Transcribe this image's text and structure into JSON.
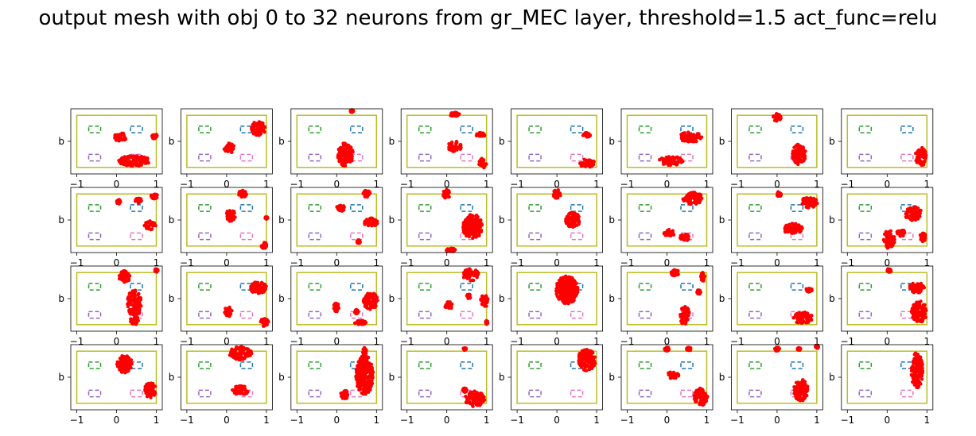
{
  "chart_data": {
    "type": "scatter",
    "title": "output mesh with obj 0 to 32 neurons from gr_MEC layer, threshold=1.5 act_func=relu",
    "grid": false,
    "rows": 4,
    "cols": 8,
    "xlim": [
      -1.15,
      1.15
    ],
    "ylim": [
      -0.75,
      0.75
    ],
    "xticks": [
      -1,
      0,
      1
    ],
    "xtick_labels": [
      "−1",
      "0",
      "1"
    ],
    "ylabel": "b",
    "point_color": "#ff0000",
    "overlays": {
      "arena": {
        "color": "#bcbd22",
        "x": [
          -1.0,
          1.0
        ],
        "y": [
          -0.6,
          0.6
        ]
      },
      "goals": [
        {
          "color": "#2ca02c",
          "x": [
            -0.7,
            -0.4
          ],
          "y": [
            0.2,
            0.35
          ]
        },
        {
          "color": "#1f77b4",
          "x": [
            0.35,
            0.65
          ],
          "y": [
            0.2,
            0.35
          ]
        },
        {
          "color": "#9467bd",
          "x": [
            -0.7,
            -0.4
          ],
          "y": [
            -0.45,
            -0.3
          ]
        },
        {
          "color": "#e377c2",
          "x": [
            0.35,
            0.65
          ],
          "y": [
            -0.45,
            -0.3
          ]
        }
      ]
    },
    "panels": [
      {
        "neuron": 0,
        "clusters": [
          [
            0.1,
            0.1,
            0.16,
            0.1
          ],
          [
            0.45,
            -0.45,
            0.4,
            0.12
          ],
          [
            0.95,
            0.12,
            0.07,
            0.06
          ]
        ]
      },
      {
        "neuron": 1,
        "clusters": [
          [
            0.8,
            0.3,
            0.18,
            0.17
          ],
          [
            0.1,
            -0.15,
            0.1,
            0.12
          ],
          [
            0.0,
            -0.18,
            0.06,
            0.05
          ]
        ]
      },
      {
        "neuron": 2,
        "clusters": [
          [
            0.22,
            -0.3,
            0.2,
            0.28
          ],
          [
            0.38,
            0.7,
            0.04,
            0.03
          ]
        ]
      },
      {
        "neuron": 3,
        "clusters": [
          [
            0.2,
            -0.12,
            0.18,
            0.12
          ],
          [
            0.2,
            0.62,
            0.12,
            0.05
          ],
          [
            0.9,
            -0.5,
            0.1,
            0.12
          ],
          [
            0.85,
            0.15,
            0.12,
            0.05
          ]
        ]
      },
      {
        "neuron": 4,
        "clusters": [
          [
            0.75,
            -0.5,
            0.2,
            0.1
          ],
          [
            0.75,
            0.15,
            0.1,
            0.05
          ]
        ]
      },
      {
        "neuron": 5,
        "clusters": [
          [
            0.6,
            0.1,
            0.3,
            0.12
          ],
          [
            0.1,
            -0.45,
            0.32,
            0.1
          ]
        ]
      },
      {
        "neuron": 6,
        "clusters": [
          [
            0.0,
            0.55,
            0.1,
            0.09
          ],
          [
            0.55,
            -0.3,
            0.17,
            0.24
          ]
        ]
      },
      {
        "neuron": 7,
        "clusters": [
          [
            0.85,
            -0.35,
            0.14,
            0.22
          ]
        ]
      },
      {
        "neuron": 8,
        "clusters": [
          [
            0.55,
            0.45,
            0.08,
            0.06
          ],
          [
            0.85,
            -0.12,
            0.15,
            0.1
          ],
          [
            0.95,
            0.55,
            0.08,
            0.06
          ],
          [
            0.05,
            0.42,
            0.05,
            0.05
          ]
        ]
      },
      {
        "neuron": 9,
        "clusters": [
          [
            0.1,
            0.1,
            0.12,
            0.14
          ],
          [
            0.4,
            0.6,
            0.1,
            0.08
          ],
          [
            0.95,
            -0.6,
            0.07,
            0.08
          ],
          [
            1.0,
            0.05,
            0.03,
            0.03
          ]
        ]
      },
      {
        "neuron": 10,
        "clusters": [
          [
            0.1,
            0.28,
            0.1,
            0.08
          ],
          [
            0.85,
            -0.05,
            0.18,
            0.1
          ],
          [
            0.75,
            0.6,
            0.1,
            0.08
          ],
          [
            0.55,
            -0.5,
            0.04,
            0.04
          ]
        ]
      },
      {
        "neuron": 11,
        "clusters": [
          [
            0.0,
            0.6,
            0.1,
            0.1
          ],
          [
            0.65,
            -0.15,
            0.25,
            0.28
          ],
          [
            0.1,
            -0.7,
            0.12,
            0.05
          ]
        ]
      },
      {
        "neuron": 12,
        "clusters": [
          [
            0.0,
            0.6,
            0.1,
            0.1
          ],
          [
            0.4,
            0.0,
            0.18,
            0.18
          ]
        ]
      },
      {
        "neuron": 13,
        "clusters": [
          [
            0.65,
            0.5,
            0.25,
            0.14
          ],
          [
            0.05,
            -0.3,
            0.14,
            0.08
          ],
          [
            0.45,
            -0.4,
            0.12,
            0.08
          ]
        ]
      },
      {
        "neuron": 14,
        "clusters": [
          [
            0.8,
            0.4,
            0.22,
            0.12
          ],
          [
            0.4,
            -0.2,
            0.25,
            0.12
          ],
          [
            0.05,
            0.6,
            0.06,
            0.06
          ]
        ]
      },
      {
        "neuron": 15,
        "clusters": [
          [
            0.65,
            0.15,
            0.22,
            0.16
          ],
          [
            0.05,
            -0.45,
            0.14,
            0.22
          ],
          [
            0.35,
            -0.3,
            0.12,
            0.08
          ],
          [
            0.9,
            -0.4,
            0.08,
            0.1
          ]
        ]
      },
      {
        "neuron": 16,
        "clusters": [
          [
            0.2,
            0.5,
            0.14,
            0.14
          ],
          [
            0.45,
            -0.1,
            0.18,
            0.32
          ],
          [
            0.45,
            -0.5,
            0.1,
            0.1
          ],
          [
            1.0,
            0.65,
            0.04,
            0.04
          ]
        ]
      },
      {
        "neuron": 17,
        "clusters": [
          [
            0.8,
            0.25,
            0.2,
            0.15
          ],
          [
            0.05,
            -0.3,
            0.1,
            0.12
          ],
          [
            0.95,
            -0.55,
            0.1,
            0.1
          ]
        ]
      },
      {
        "neuron": 18,
        "clusters": [
          [
            0.85,
            -0.05,
            0.18,
            0.2
          ],
          [
            0.6,
            -0.55,
            0.15,
            0.05
          ],
          [
            0.0,
            -0.2,
            0.08,
            0.1
          ],
          [
            0.5,
            -0.3,
            0.05,
            0.05
          ]
        ]
      },
      {
        "neuron": 19,
        "clusters": [
          [
            0.6,
            0.55,
            0.2,
            0.14
          ],
          [
            0.95,
            -0.05,
            0.1,
            0.14
          ],
          [
            0.05,
            -0.15,
            0.1,
            0.1
          ],
          [
            0.55,
            0.05,
            0.05,
            0.05
          ],
          [
            1.0,
            -0.55,
            0.03,
            0.04
          ]
        ]
      },
      {
        "neuron": 20,
        "clusters": [
          [
            0.25,
            0.2,
            0.28,
            0.32
          ]
        ]
      },
      {
        "neuron": 21,
        "clusters": [
          [
            0.45,
            -0.4,
            0.12,
            0.22
          ],
          [
            0.9,
            0.5,
            0.05,
            0.1
          ],
          [
            0.2,
            0.6,
            0.1,
            0.08
          ],
          [
            0.8,
            0.15,
            0.05,
            0.05
          ]
        ]
      },
      {
        "neuron": 22,
        "clusters": [
          [
            0.65,
            -0.45,
            0.25,
            0.14
          ],
          [
            0.8,
            0.2,
            0.08,
            0.05
          ]
        ]
      },
      {
        "neuron": 23,
        "clusters": [
          [
            0.75,
            0.25,
            0.2,
            0.12
          ],
          [
            0.8,
            -0.3,
            0.2,
            0.25
          ],
          [
            0.05,
            0.65,
            0.06,
            0.04
          ]
        ]
      },
      {
        "neuron": 24,
        "clusters": [
          [
            0.2,
            0.3,
            0.2,
            0.2
          ],
          [
            0.85,
            -0.3,
            0.15,
            0.18
          ]
        ]
      },
      {
        "neuron": 25,
        "clusters": [
          [
            0.35,
            0.55,
            0.28,
            0.16
          ],
          [
            0.35,
            -0.3,
            0.22,
            0.1
          ]
        ]
      },
      {
        "neuron": 26,
        "clusters": [
          [
            0.7,
            0.05,
            0.22,
            0.45
          ],
          [
            0.2,
            -0.4,
            0.1,
            0.1
          ],
          [
            0.7,
            0.6,
            0.05,
            0.08
          ]
        ]
      },
      {
        "neuron": 27,
        "clusters": [
          [
            0.7,
            -0.5,
            0.25,
            0.18
          ],
          [
            0.45,
            -0.3,
            0.05,
            0.05
          ],
          [
            0.45,
            0.65,
            0.04,
            0.03
          ]
        ]
      },
      {
        "neuron": 28,
        "clusters": [
          [
            0.75,
            0.4,
            0.22,
            0.25
          ]
        ]
      },
      {
        "neuron": 29,
        "clusters": [
          [
            0.85,
            -0.45,
            0.17,
            0.2
          ],
          [
            0.15,
            0.05,
            0.15,
            0.08
          ],
          [
            0.0,
            0.65,
            0.06,
            0.05
          ],
          [
            0.55,
            0.65,
            0.06,
            0.04
          ]
        ]
      },
      {
        "neuron": 30,
        "clusters": [
          [
            0.6,
            -0.3,
            0.18,
            0.25
          ],
          [
            0.0,
            0.65,
            0.06,
            0.05
          ],
          [
            0.55,
            0.65,
            0.04,
            0.03
          ],
          [
            1.0,
            0.7,
            0.04,
            0.04
          ]
        ]
      },
      {
        "neuron": 31,
        "clusters": [
          [
            0.75,
            0.15,
            0.15,
            0.42
          ]
        ]
      }
    ]
  }
}
